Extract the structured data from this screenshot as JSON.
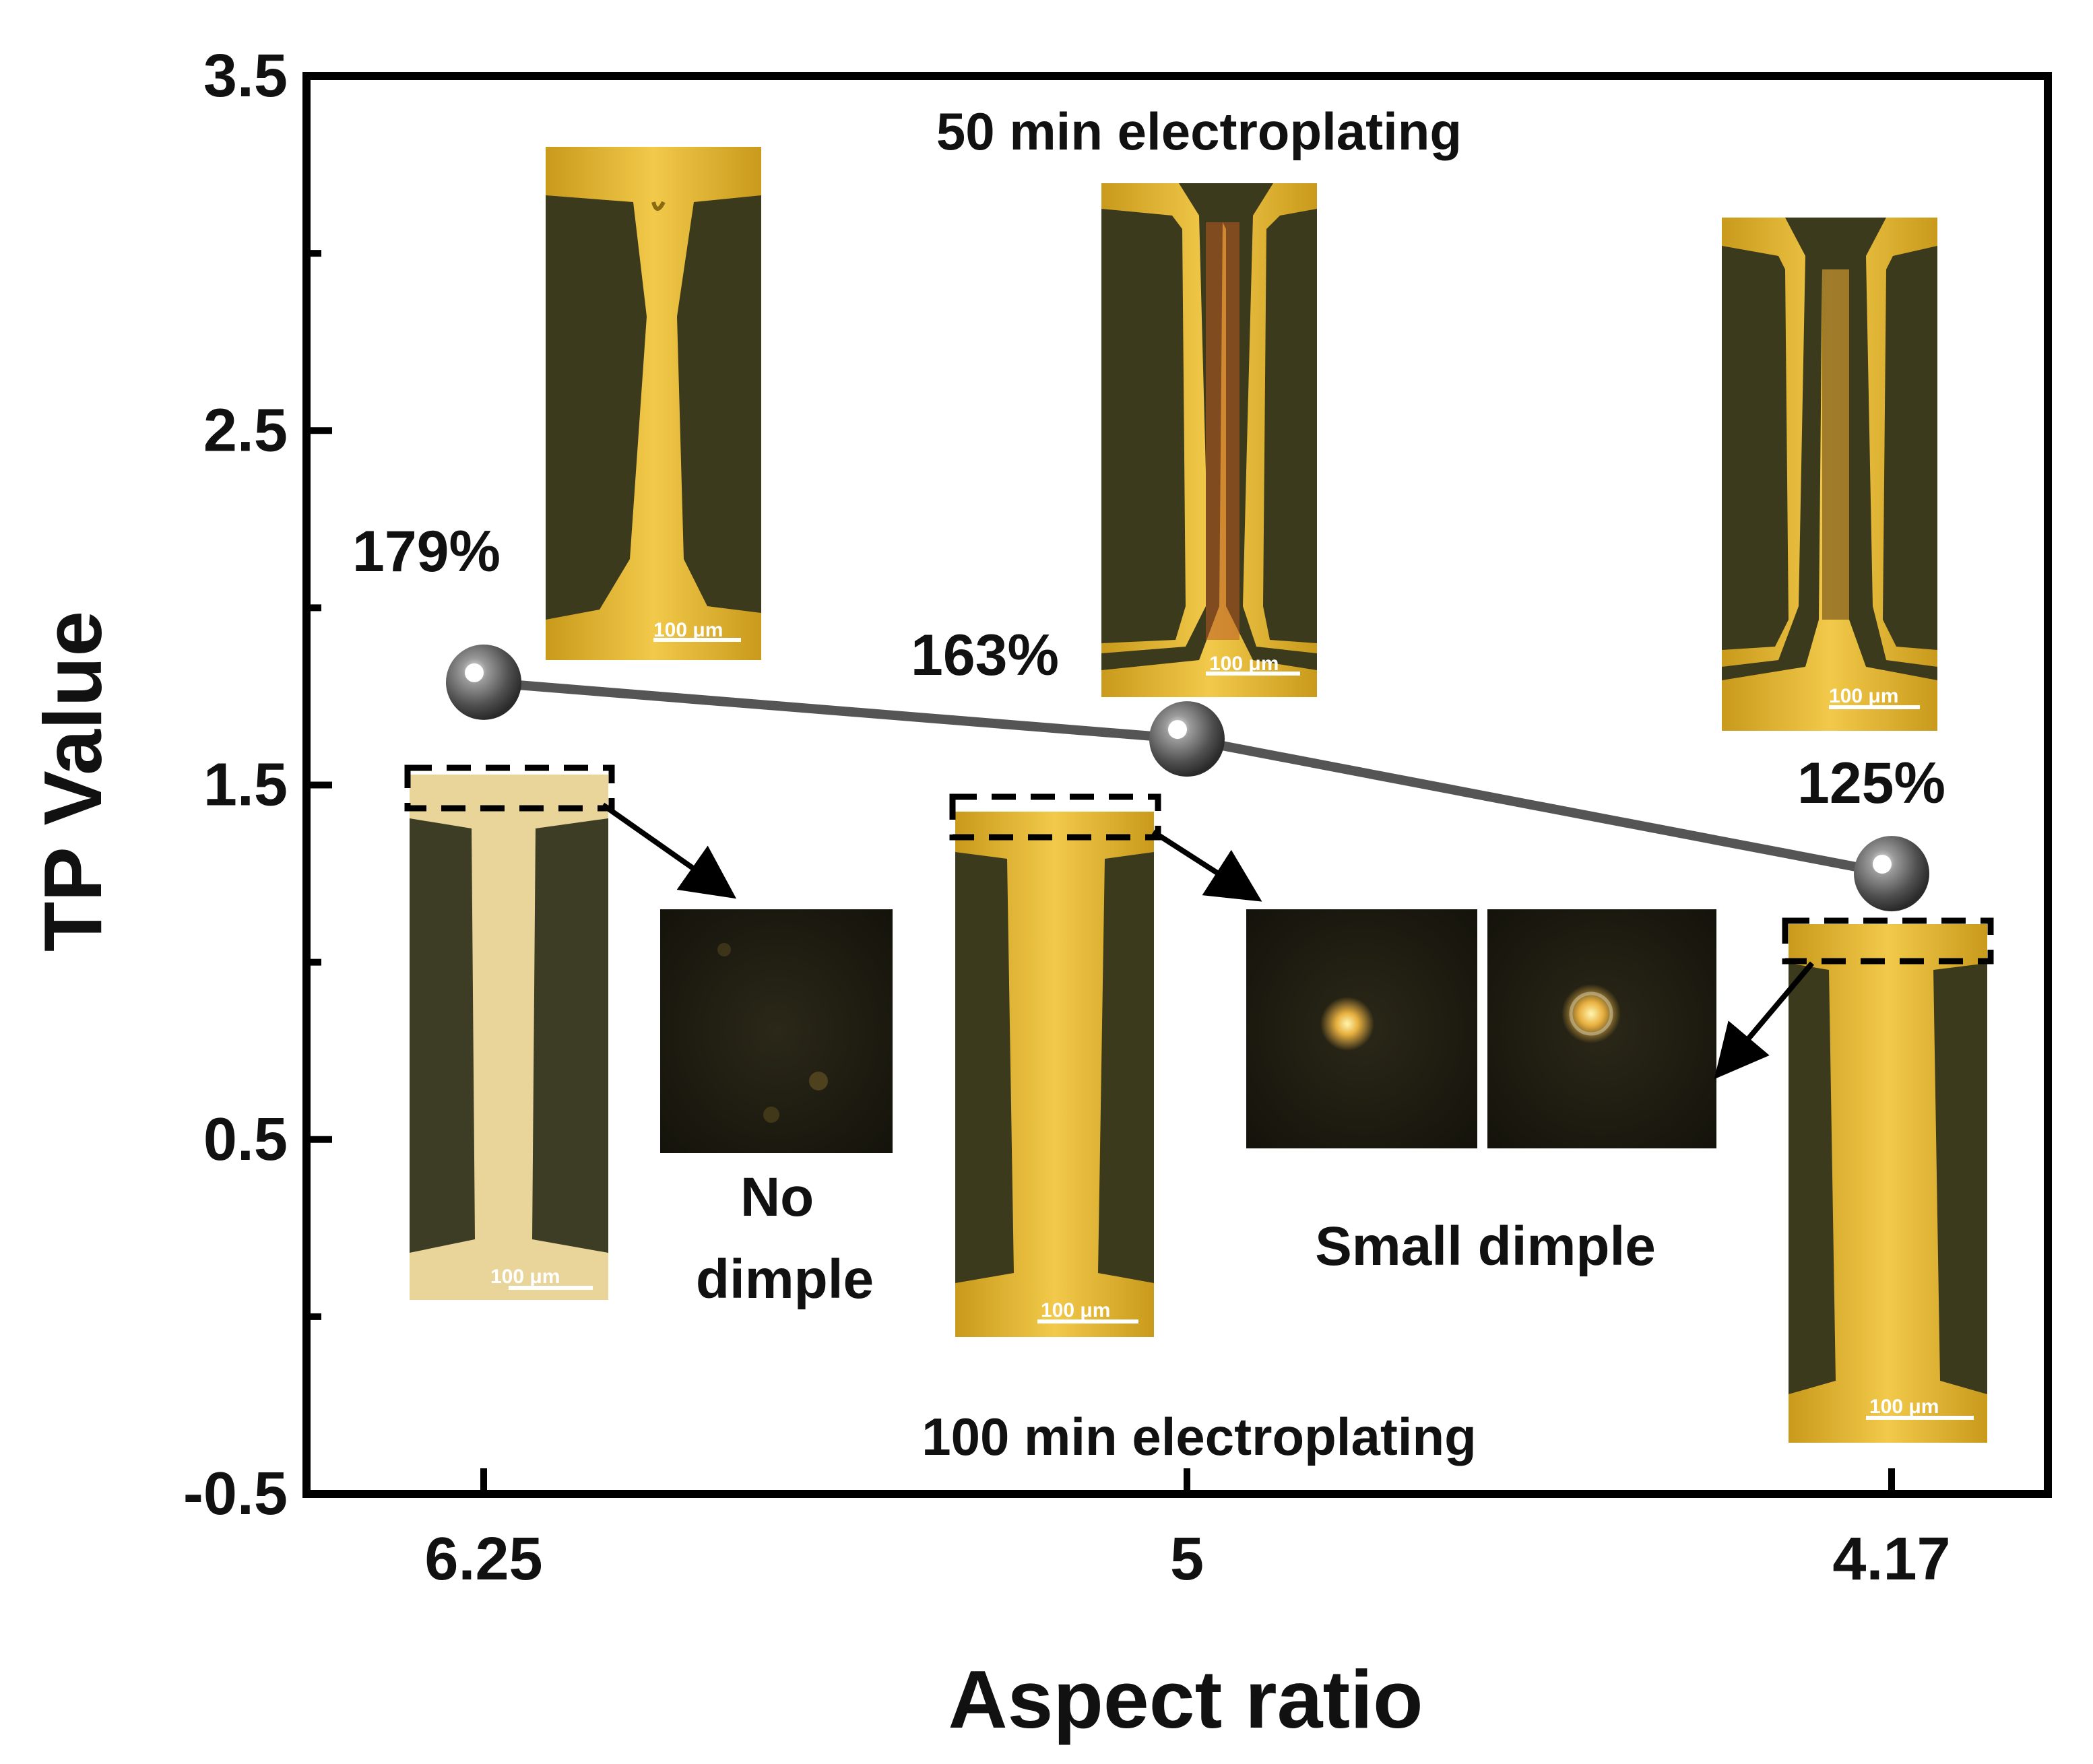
{
  "chart_data": {
    "type": "line",
    "title": "",
    "xlabel": "Aspect ratio",
    "ylabel": "TP Value",
    "categories": [
      "6.25",
      "5",
      "4.17"
    ],
    "series": [
      {
        "name": "TP Value",
        "values": [
          1.79,
          1.63,
          1.25
        ],
        "labels": [
          "179%",
          "163%",
          "125%"
        ]
      }
    ],
    "ylim": [
      -0.5,
      3.5
    ],
    "yticks": [
      "3.5",
      "2.5",
      "1.5",
      "0.5",
      "-0.5"
    ],
    "annotations": {
      "top": "50 min electroplating",
      "bottom": "100 min electroplating",
      "no_dimple": "No dimple",
      "small_dimple": "Small dimple"
    },
    "scale_bar": "100 μm"
  },
  "colors": {
    "axis": "#000000",
    "line": "#555555",
    "marker": "#5a5a5a",
    "copper": "#e6b42a",
    "pcb": "#3d3d1c",
    "dark_micro": "#1f1d12"
  }
}
